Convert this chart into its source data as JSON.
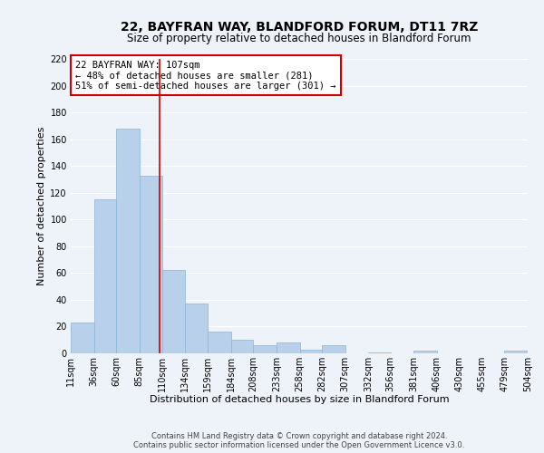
{
  "title": "22, BAYFRAN WAY, BLANDFORD FORUM, DT11 7RZ",
  "subtitle": "Size of property relative to detached houses in Blandford Forum",
  "xlabel": "Distribution of detached houses by size in Blandford Forum",
  "ylabel": "Number of detached properties",
  "bin_edges": [
    11,
    36,
    60,
    85,
    110,
    134,
    159,
    184,
    208,
    233,
    258,
    282,
    307,
    332,
    356,
    381,
    406,
    430,
    455,
    479,
    504
  ],
  "bin_labels": [
    "11sqm",
    "36sqm",
    "60sqm",
    "85sqm",
    "110sqm",
    "134sqm",
    "159sqm",
    "184sqm",
    "208sqm",
    "233sqm",
    "258sqm",
    "282sqm",
    "307sqm",
    "332sqm",
    "356sqm",
    "381sqm",
    "406sqm",
    "430sqm",
    "455sqm",
    "479sqm",
    "504sqm"
  ],
  "counts": [
    23,
    115,
    168,
    133,
    62,
    37,
    16,
    10,
    6,
    8,
    3,
    6,
    0,
    1,
    0,
    2,
    0,
    0,
    0,
    2
  ],
  "bar_color": "#b8d0ea",
  "bar_edge_color": "#8ab4d8",
  "property_size": 107,
  "vline_color": "#cc0000",
  "annotation_title": "22 BAYFRAN WAY: 107sqm",
  "annotation_line1": "← 48% of detached houses are smaller (281)",
  "annotation_line2": "51% of semi-detached houses are larger (301) →",
  "annotation_box_facecolor": "#ffffff",
  "annotation_box_edgecolor": "#cc0000",
  "ylim": [
    0,
    220
  ],
  "yticks": [
    0,
    20,
    40,
    60,
    80,
    100,
    120,
    140,
    160,
    180,
    200,
    220
  ],
  "footer1": "Contains HM Land Registry data © Crown copyright and database right 2024.",
  "footer2": "Contains public sector information licensed under the Open Government Licence v3.0.",
  "background_color": "#eef2f9",
  "grid_color": "#ffffff",
  "title_fontsize": 10,
  "subtitle_fontsize": 8.5,
  "xlabel_fontsize": 8,
  "ylabel_fontsize": 8,
  "tick_fontsize": 7,
  "annotation_fontsize": 7.5,
  "footer_fontsize": 6
}
